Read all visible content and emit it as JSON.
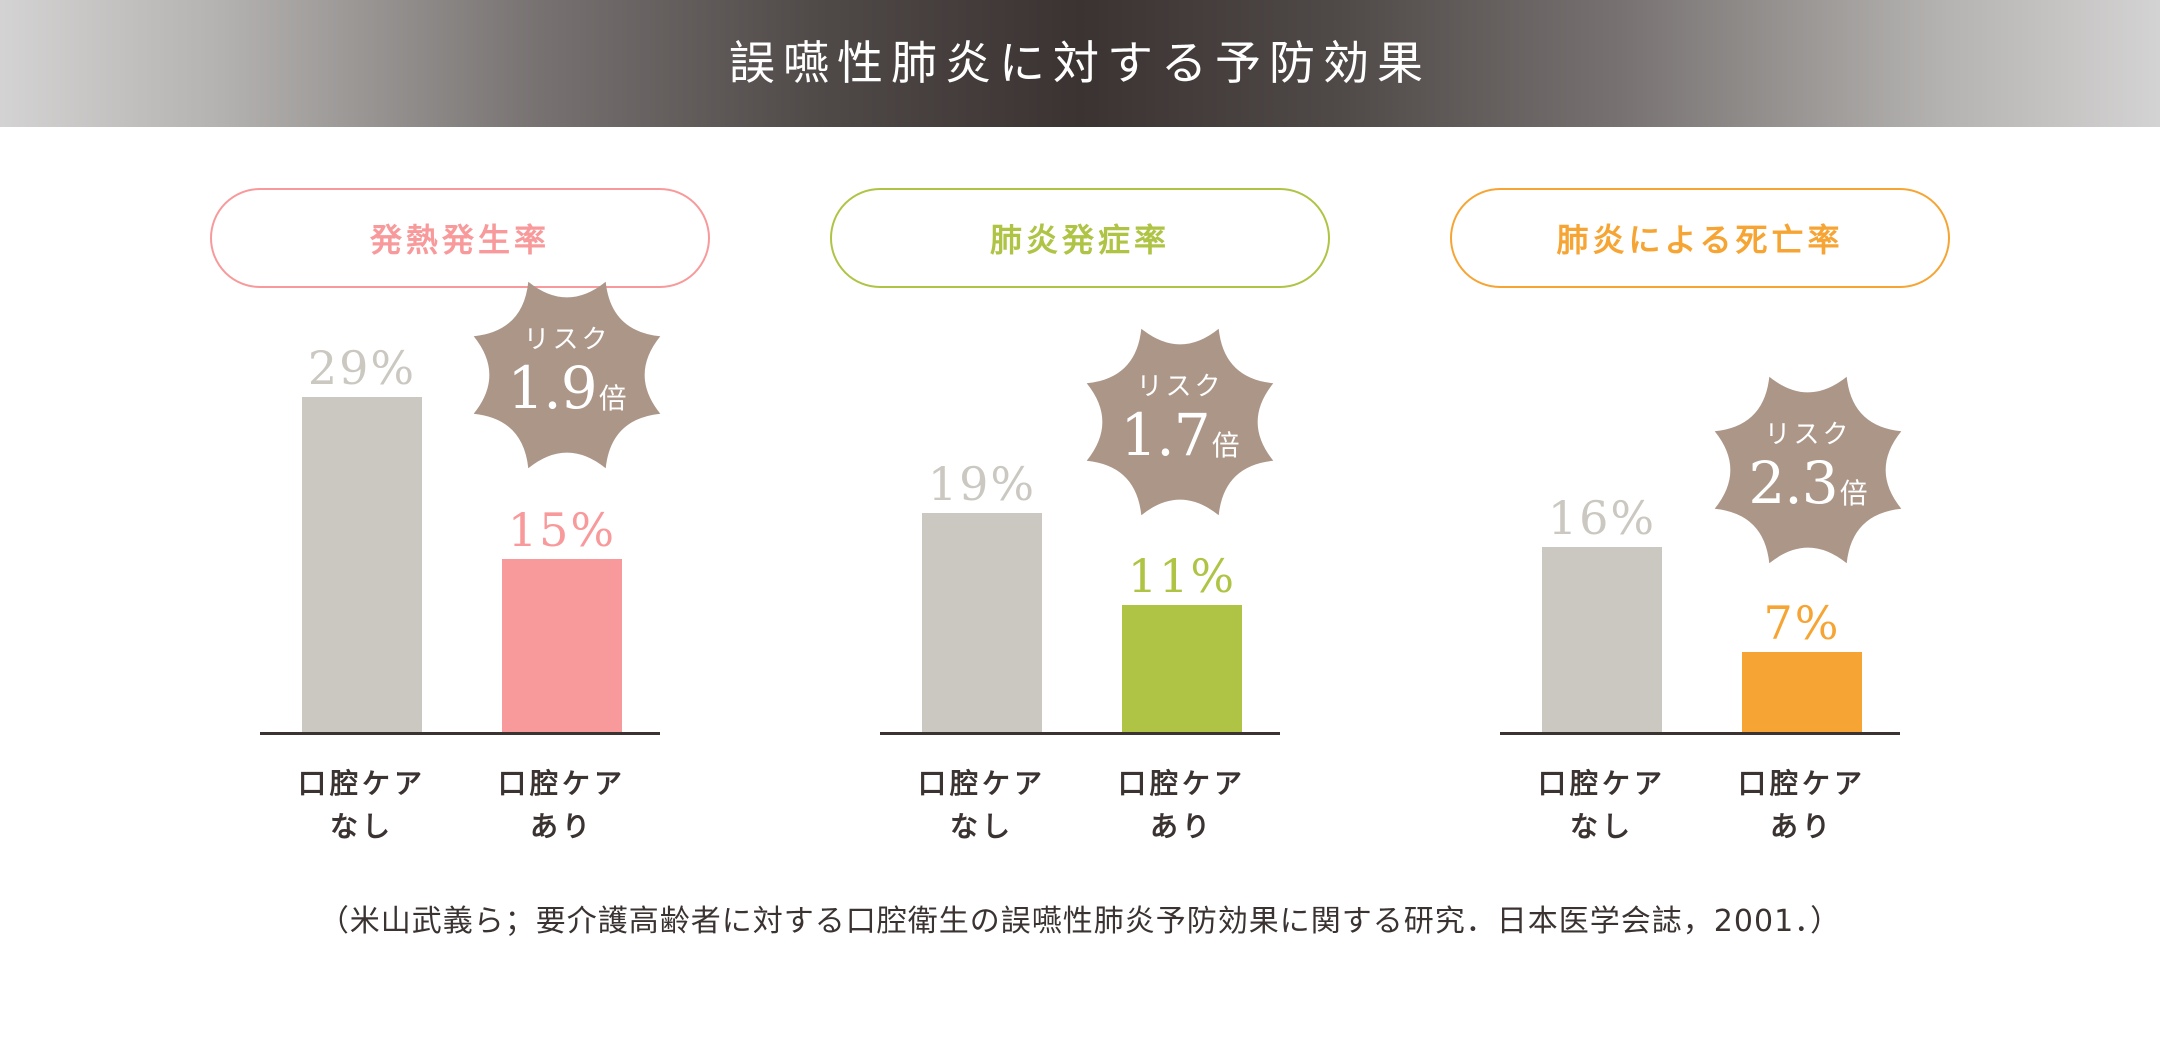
{
  "header": {
    "title": "誤嚥性肺炎に対する予防効果"
  },
  "colors": {
    "header_center": "#3b3332",
    "header_edge": "#d4d3d3",
    "control_bar": "#cbc8c1",
    "burst": "#ac9688",
    "axis": "#3a3332",
    "text_dark": "#3a3332"
  },
  "panels": [
    {
      "title": "発熱発生率",
      "accent": "#f89a9b",
      "categories": [
        "口腔ケア\nなし",
        "口腔ケア\nあり"
      ],
      "cat_line1": [
        "口腔ケア",
        "口腔ケア"
      ],
      "cat_line2": [
        "なし",
        "あり"
      ],
      "values": [
        29,
        15
      ],
      "value_labels": [
        "29%",
        "15%"
      ],
      "risk_label": "リスク",
      "risk_value": "1.9",
      "risk_unit": "倍"
    },
    {
      "title": "肺炎発症率",
      "accent": "#afc445",
      "cat_line1": [
        "口腔ケア",
        "口腔ケア"
      ],
      "cat_line2": [
        "なし",
        "あり"
      ],
      "values": [
        19,
        11
      ],
      "value_labels": [
        "19%",
        "11%"
      ],
      "risk_label": "リスク",
      "risk_value": "1.7",
      "risk_unit": "倍"
    },
    {
      "title": "肺炎による死亡率",
      "accent": "#f6a534",
      "cat_line1": [
        "口腔ケア",
        "口腔ケア"
      ],
      "cat_line2": [
        "なし",
        "あり"
      ],
      "values": [
        16,
        7
      ],
      "value_labels": [
        "16%",
        "7%"
      ],
      "risk_label": "リスク",
      "risk_value": "2.3",
      "risk_unit": "倍"
    }
  ],
  "footnote": "（米山武義ら；要介護高齢者に対する口腔衛生の誤嚥性肺炎予防効果に関する研究．日本医学会誌，2001．）",
  "chart_data": [
    {
      "type": "bar",
      "title": "発熱発生率",
      "categories": [
        "口腔ケアなし",
        "口腔ケアあり"
      ],
      "values": [
        29,
        15
      ],
      "unit": "%",
      "annotation": "リスク1.9倍",
      "colors": [
        "#cbc8c1",
        "#f89a9b"
      ],
      "grid": false
    },
    {
      "type": "bar",
      "title": "肺炎発症率",
      "categories": [
        "口腔ケアなし",
        "口腔ケアあり"
      ],
      "values": [
        19,
        11
      ],
      "unit": "%",
      "annotation": "リスク1.7倍",
      "colors": [
        "#cbc8c1",
        "#afc445"
      ],
      "grid": false
    },
    {
      "type": "bar",
      "title": "肺炎による死亡率",
      "categories": [
        "口腔ケアなし",
        "口腔ケアあり"
      ],
      "values": [
        16,
        7
      ],
      "unit": "%",
      "annotation": "リスク2.3倍",
      "colors": [
        "#cbc8c1",
        "#f6a534"
      ],
      "grid": false
    }
  ]
}
